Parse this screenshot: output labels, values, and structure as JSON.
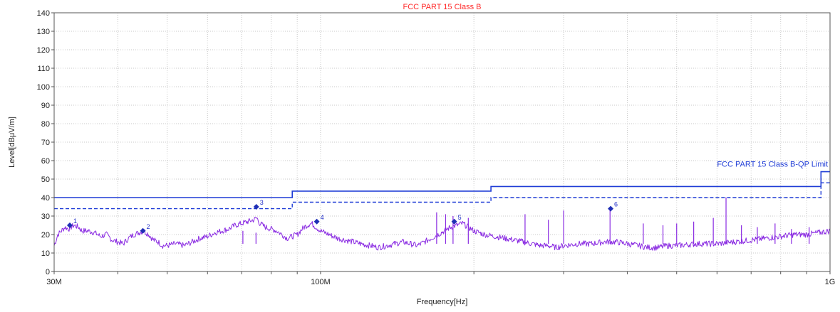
{
  "chart_data": {
    "type": "line",
    "title": "FCC PART 15 Class B",
    "xlabel": "Frequency[Hz]",
    "ylabel": "Level[dBμV/m]",
    "x_scale": "log",
    "xlim": [
      30000000,
      1000000000
    ],
    "ylim": [
      0,
      140
    ],
    "y_ticks": [
      0,
      10,
      20,
      30,
      40,
      50,
      60,
      70,
      80,
      90,
      100,
      110,
      120,
      130,
      140
    ],
    "x_tick_labels": [
      {
        "value": 30000000,
        "label": "30M"
      },
      {
        "value": 100000000,
        "label": "100M"
      },
      {
        "value": 1000000000,
        "label": "1G"
      }
    ],
    "x_minor_ticks": [
      40000000,
      50000000,
      60000000,
      70000000,
      80000000,
      90000000,
      200000000,
      300000000,
      400000000,
      500000000,
      600000000,
      700000000,
      800000000,
      900000000
    ],
    "grid": true,
    "colors": {
      "limit": "#1f3cd6",
      "trace": "#8a2be2",
      "marker": "#1f2fb5",
      "title": "#ff2a2a"
    },
    "limit_label": "FCC PART 15 Class B-QP Limit",
    "series": [
      {
        "style": "solid",
        "color": "#1f3cd6",
        "x": [
          30000000,
          88000000,
          88000000,
          216000000,
          216000000,
          960000000,
          960000000,
          1000000000
        ],
        "y": [
          40,
          40,
          43.5,
          43.5,
          46,
          46,
          54,
          54
        ]
      },
      {
        "style": "dashed",
        "color": "#1f3cd6",
        "x": [
          30000000,
          88000000,
          88000000,
          216000000,
          216000000,
          960000000,
          960000000,
          1000000000
        ],
        "y": [
          34,
          34,
          37.5,
          37.5,
          40,
          40,
          48,
          48
        ]
      },
      {
        "style": "trace",
        "color": "#8a2be2",
        "x": [
          30000000,
          30500000,
          31000000,
          31500000,
          32000000,
          32800000,
          33500000,
          34000000,
          35000000,
          36000000,
          37000000,
          38000000,
          39000000,
          40000000,
          41000000,
          42000000,
          43000000,
          44000000,
          45000000,
          46000000,
          47000000,
          48000000,
          49000000,
          50000000,
          52000000,
          54000000,
          56000000,
          58000000,
          60000000,
          62000000,
          64000000,
          66000000,
          68000000,
          70000000,
          72000000,
          74000000,
          75000000,
          76000000,
          78000000,
          80000000,
          82000000,
          84000000,
          86000000,
          88000000,
          90000000,
          92000000,
          94000000,
          96000000,
          98000000,
          100000000,
          104000000,
          108000000,
          112000000,
          116000000,
          120000000,
          125000000,
          130000000,
          135000000,
          140000000,
          145000000,
          150000000,
          155000000,
          160000000,
          165000000,
          170000000,
          175000000,
          180000000,
          185000000,
          190000000,
          195000000,
          200000000,
          210000000,
          220000000,
          230000000,
          240000000,
          250000000,
          260000000,
          270000000,
          280000000,
          290000000,
          300000000,
          320000000,
          340000000,
          360000000,
          380000000,
          400000000,
          420000000,
          440000000,
          460000000,
          480000000,
          500000000,
          550000000,
          600000000,
          650000000,
          700000000,
          750000000,
          800000000,
          850000000,
          900000000,
          950000000,
          1000000000
        ],
        "y": [
          14,
          20,
          22,
          24,
          23,
          25,
          24,
          22,
          22,
          21,
          19,
          20,
          17,
          16,
          15,
          18,
          20,
          21,
          22,
          20,
          17,
          16,
          14,
          14,
          15,
          14,
          16,
          18,
          19,
          21,
          22,
          23,
          25,
          26,
          27,
          28,
          29,
          26,
          24,
          23,
          22,
          20,
          18,
          19,
          20,
          23,
          25,
          26,
          24,
          22,
          20,
          18,
          17,
          16,
          15,
          14,
          13,
          14,
          15,
          16,
          15,
          14,
          16,
          18,
          20,
          22,
          24,
          25,
          26,
          24,
          22,
          20,
          19,
          18,
          17,
          16,
          15,
          14,
          14,
          13,
          14,
          15,
          15,
          16,
          16,
          15,
          14,
          13,
          13,
          14,
          14,
          15,
          15,
          16,
          17,
          18,
          19,
          20,
          20,
          21,
          22
        ]
      }
    ],
    "spikes": [
      {
        "x": 70400000,
        "y": 22
      },
      {
        "x": 74700000,
        "y": 21
      },
      {
        "x": 169000000,
        "y": 32
      },
      {
        "x": 176000000,
        "y": 31
      },
      {
        "x": 182000000,
        "y": 30
      },
      {
        "x": 195000000,
        "y": 29
      },
      {
        "x": 252000000,
        "y": 31
      },
      {
        "x": 280000000,
        "y": 28
      },
      {
        "x": 300000000,
        "y": 33
      },
      {
        "x": 370000000,
        "y": 34
      },
      {
        "x": 430000000,
        "y": 26
      },
      {
        "x": 470000000,
        "y": 25
      },
      {
        "x": 500000000,
        "y": 26
      },
      {
        "x": 540000000,
        "y": 27
      },
      {
        "x": 590000000,
        "y": 29
      },
      {
        "x": 625000000,
        "y": 40
      },
      {
        "x": 670000000,
        "y": 25
      },
      {
        "x": 720000000,
        "y": 24
      },
      {
        "x": 780000000,
        "y": 26
      },
      {
        "x": 840000000,
        "y": 23
      },
      {
        "x": 910000000,
        "y": 24
      }
    ],
    "markers": [
      {
        "label": "1",
        "x": 32200000,
        "y": 25
      },
      {
        "label": "2",
        "x": 44800000,
        "y": 22
      },
      {
        "label": "3",
        "x": 74800000,
        "y": 35
      },
      {
        "label": "4",
        "x": 98300000,
        "y": 27
      },
      {
        "label": "5",
        "x": 183000000,
        "y": 27
      },
      {
        "label": "6",
        "x": 371000000,
        "y": 34
      }
    ]
  }
}
